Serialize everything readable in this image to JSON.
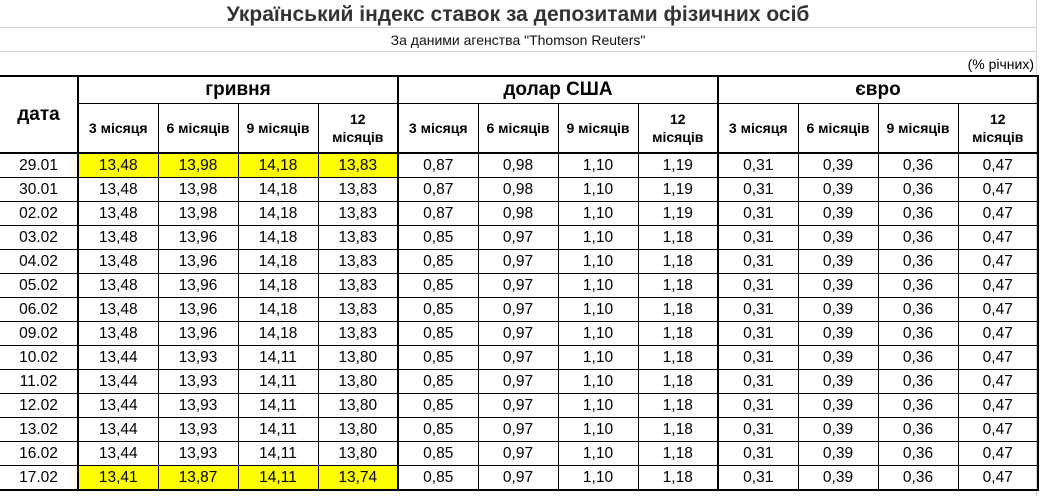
{
  "title": "Український індекс ставок за депозитами фізичних осіб",
  "subtitle": "За даними агенства \"Thomson Reuters\"",
  "units": "(% річних)",
  "highlight_color": "#ffff00",
  "table": {
    "date_header": "дата",
    "groups": [
      "гривня",
      "долар США",
      "євро"
    ],
    "subheaders": [
      "3 місяця",
      "6 місяців",
      "9 місяців",
      "12 місяців"
    ],
    "rows": [
      {
        "date": "29.01",
        "highlighted": true,
        "values": [
          "13,48",
          "13,98",
          "14,18",
          "13,83",
          "0,87",
          "0,98",
          "1,10",
          "1,19",
          "0,31",
          "0,39",
          "0,36",
          "0,47"
        ]
      },
      {
        "date": "30.01",
        "highlighted": false,
        "values": [
          "13,48",
          "13,98",
          "14,18",
          "13,83",
          "0,87",
          "0,98",
          "1,10",
          "1,19",
          "0,31",
          "0,39",
          "0,36",
          "0,47"
        ]
      },
      {
        "date": "02.02",
        "highlighted": false,
        "values": [
          "13,48",
          "13,98",
          "14,18",
          "13,83",
          "0,87",
          "0,98",
          "1,10",
          "1,19",
          "0,31",
          "0,39",
          "0,36",
          "0,47"
        ]
      },
      {
        "date": "03.02",
        "highlighted": false,
        "values": [
          "13,48",
          "13,96",
          "14,18",
          "13,83",
          "0,85",
          "0,97",
          "1,10",
          "1,18",
          "0,31",
          "0,39",
          "0,36",
          "0,47"
        ]
      },
      {
        "date": "04.02",
        "highlighted": false,
        "values": [
          "13,48",
          "13,96",
          "14,18",
          "13,83",
          "0,85",
          "0,97",
          "1,10",
          "1,18",
          "0,31",
          "0,39",
          "0,36",
          "0,47"
        ]
      },
      {
        "date": "05.02",
        "highlighted": false,
        "values": [
          "13,48",
          "13,96",
          "14,18",
          "13,83",
          "0,85",
          "0,97",
          "1,10",
          "1,18",
          "0,31",
          "0,39",
          "0,36",
          "0,47"
        ]
      },
      {
        "date": "06.02",
        "highlighted": false,
        "values": [
          "13,48",
          "13,96",
          "14,18",
          "13,83",
          "0,85",
          "0,97",
          "1,10",
          "1,18",
          "0,31",
          "0,39",
          "0,36",
          "0,47"
        ]
      },
      {
        "date": "09.02",
        "highlighted": false,
        "values": [
          "13,48",
          "13,96",
          "14,18",
          "13,83",
          "0,85",
          "0,97",
          "1,10",
          "1,18",
          "0,31",
          "0,39",
          "0,36",
          "0,47"
        ]
      },
      {
        "date": "10.02",
        "highlighted": false,
        "values": [
          "13,44",
          "13,93",
          "14,11",
          "13,80",
          "0,85",
          "0,97",
          "1,10",
          "1,18",
          "0,31",
          "0,39",
          "0,36",
          "0,47"
        ]
      },
      {
        "date": "11.02",
        "highlighted": false,
        "values": [
          "13,44",
          "13,93",
          "14,11",
          "13,80",
          "0,85",
          "0,97",
          "1,10",
          "1,18",
          "0,31",
          "0,39",
          "0,36",
          "0,47"
        ]
      },
      {
        "date": "12.02",
        "highlighted": false,
        "values": [
          "13,44",
          "13,93",
          "14,11",
          "13,80",
          "0,85",
          "0,97",
          "1,10",
          "1,18",
          "0,31",
          "0,39",
          "0,36",
          "0,47"
        ]
      },
      {
        "date": "13.02",
        "highlighted": false,
        "values": [
          "13,44",
          "13,93",
          "14,11",
          "13,80",
          "0,85",
          "0,97",
          "1,10",
          "1,18",
          "0,31",
          "0,39",
          "0,36",
          "0,47"
        ]
      },
      {
        "date": "16.02",
        "highlighted": false,
        "values": [
          "13,44",
          "13,93",
          "14,11",
          "13,80",
          "0,85",
          "0,97",
          "1,10",
          "1,18",
          "0,31",
          "0,39",
          "0,36",
          "0,47"
        ]
      },
      {
        "date": "17.02",
        "highlighted": true,
        "values": [
          "13,41",
          "13,87",
          "14,11",
          "13,74",
          "0,85",
          "0,97",
          "1,10",
          "1,18",
          "0,31",
          "0,39",
          "0,36",
          "0,47"
        ]
      }
    ]
  }
}
